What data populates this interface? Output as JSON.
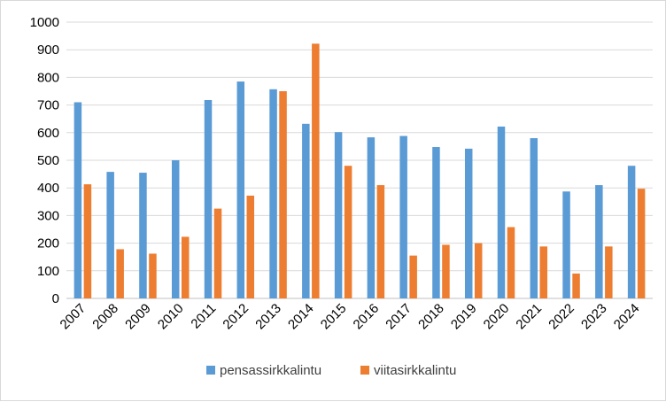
{
  "chart_data": {
    "type": "bar",
    "categories": [
      "2007",
      "2008",
      "2009",
      "2010",
      "2011",
      "2012",
      "2013",
      "2014",
      "2015",
      "2016",
      "2017",
      "2018",
      "2019",
      "2020",
      "2021",
      "2022",
      "2023",
      "2024"
    ],
    "series": [
      {
        "name": "pensassirkkalintu",
        "color": "#5b9bd5",
        "values": [
          710,
          458,
          455,
          500,
          718,
          785,
          757,
          632,
          602,
          583,
          588,
          548,
          542,
          622,
          580,
          387,
          410,
          480
        ]
      },
      {
        "name": "viitasirkkalintu",
        "color": "#ed7d31",
        "values": [
          413,
          178,
          162,
          223,
          325,
          372,
          750,
          922,
          480,
          410,
          155,
          194,
          200,
          258,
          188,
          90,
          188,
          397
        ]
      }
    ],
    "ylim": [
      0,
      1000
    ],
    "yticks": [
      0,
      100,
      200,
      300,
      400,
      500,
      600,
      700,
      800,
      900,
      1000
    ],
    "grid": true,
    "legend": "bottom"
  }
}
